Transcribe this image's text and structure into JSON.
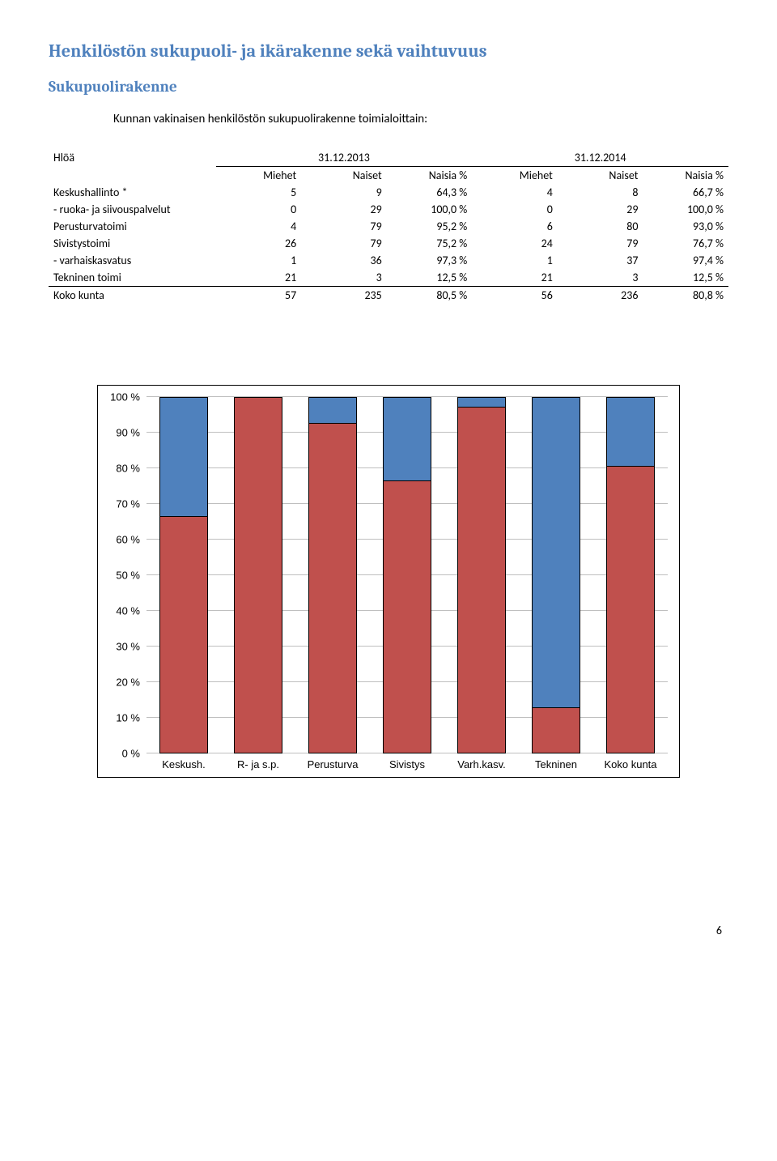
{
  "heading_main": "Henkilöstön sukupuoli- ja ikärakenne sekä vaihtuvuus",
  "heading_sub": "Sukupuolirakenne",
  "intro_text": "Kunnan vakinaisen henkilöstön sukupuolirakenne toimialoittain:",
  "table": {
    "corner": "Hlöä",
    "year_left": "31.12.2013",
    "year_right": "31.12.2014",
    "col_headers": [
      "Miehet",
      "Naiset",
      "Naisia %",
      "Miehet",
      "Naiset",
      "Naisia %"
    ],
    "rows": [
      {
        "label": "Keskushallinto *",
        "cells": [
          "5",
          "9",
          "64,3 %",
          "4",
          "8",
          "66,7 %"
        ]
      },
      {
        "label": "- ruoka- ja siivouspalvelut",
        "cells": [
          "0",
          "29",
          "100,0 %",
          "0",
          "29",
          "100,0 %"
        ]
      },
      {
        "label": "Perusturvatoimi",
        "cells": [
          "4",
          "79",
          "95,2 %",
          "6",
          "80",
          "93,0 %"
        ]
      },
      {
        "label": "Sivistystoimi",
        "cells": [
          "26",
          "79",
          "75,2 %",
          "24",
          "79",
          "76,7 %"
        ]
      },
      {
        "label": "- varhaiskasvatus",
        "cells": [
          "1",
          "36",
          "97,3 %",
          "1",
          "37",
          "97,4 %"
        ]
      },
      {
        "label": "Tekninen toimi",
        "cells": [
          "21",
          "3",
          "12,5 %",
          "21",
          "3",
          "12,5 %"
        ]
      },
      {
        "label": "Koko kunta",
        "cells": [
          "57",
          "235",
          "80,5 %",
          "56",
          "236",
          "80,8 %"
        ]
      }
    ]
  },
  "chart": {
    "type": "stacked-bar",
    "y_ticks": [
      "0 %",
      "10 %",
      "20 %",
      "30 %",
      "40 %",
      "50 %",
      "60 %",
      "70 %",
      "80 %",
      "90 %",
      "100 %"
    ],
    "categories": [
      "Keskush.",
      "R- ja s.p.",
      "Perusturva",
      "Sivistys",
      "Varh.kasv.",
      "Tekninen",
      "Koko kunta"
    ],
    "bottom_pct": [
      66.7,
      100.0,
      93.0,
      76.7,
      97.4,
      12.5,
      80.8
    ],
    "colors": {
      "top": "#4f81bd",
      "bottom": "#c0504d",
      "grid": "#bfbfbf",
      "background": "#ffffff"
    }
  },
  "page_number": "6"
}
